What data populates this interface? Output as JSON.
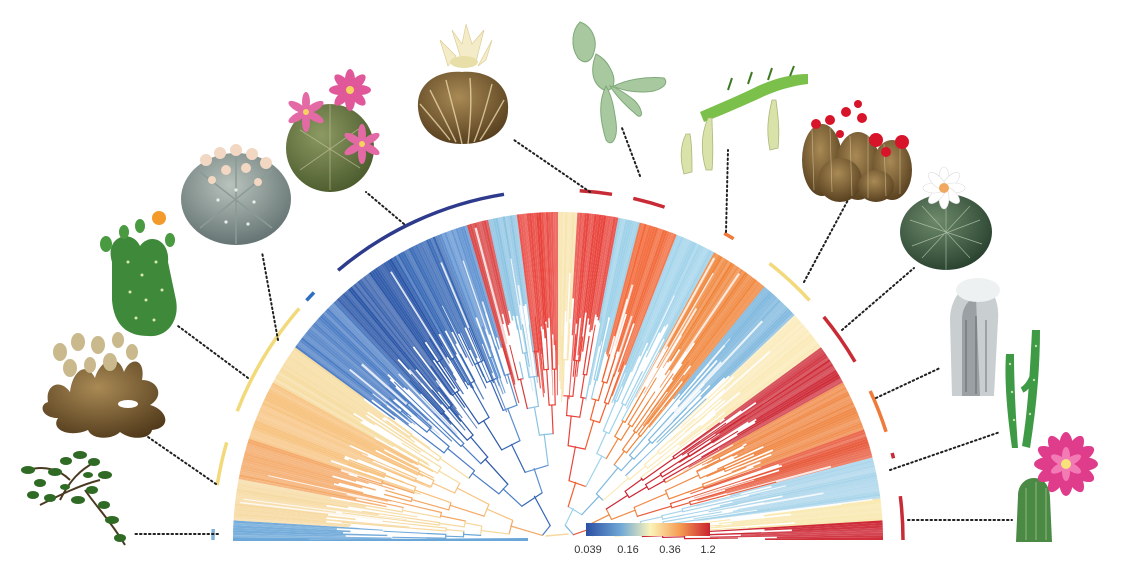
{
  "figure": {
    "description_type": "phylogeny-rate-fan",
    "colors": {
      "low": "#2b57a8",
      "low_mid": "#8fc4e0",
      "mid": "#fbf0b0",
      "high_mid": "#f39a4d",
      "high": "#cc2532",
      "arc_dark_blue": "#2e3b8c",
      "arc_red": "#c82b35",
      "arc_orange": "#ef7a3a",
      "arc_yellow": "#f2d97a",
      "arc_light_blue": "#7fb3d8"
    }
  },
  "color_scale": {
    "ticks": [
      "0.039",
      "0.16",
      "0.36",
      "1.2"
    ],
    "stops": [
      "#2b4fa3",
      "#6fa8d6",
      "#fbf3b8",
      "#f59b52",
      "#c9222f"
    ]
  },
  "clades": [
    {
      "id": "c1",
      "color": "#7fb3d8",
      "span": [
        0.0,
        0.01
      ]
    },
    {
      "id": "c2",
      "color": "#f2d97a",
      "span": [
        0.05,
        0.09
      ]
    },
    {
      "id": "c3",
      "color": "#f2d97a",
      "span": [
        0.12,
        0.23
      ]
    },
    {
      "id": "c4",
      "color": "#2e6fbf",
      "span": [
        0.24,
        0.25
      ]
    },
    {
      "id": "c5",
      "color": "#2e3b8c",
      "span": [
        0.28,
        0.45
      ]
    },
    {
      "id": "c6",
      "color": "#c82b35",
      "span": [
        0.52,
        0.55
      ]
    },
    {
      "id": "c7",
      "color": "#c82b35",
      "span": [
        0.57,
        0.6
      ]
    },
    {
      "id": "c8",
      "color": "#ef7a3a",
      "span": [
        0.66,
        0.67
      ]
    },
    {
      "id": "c9",
      "color": "#f2d97a",
      "span": [
        0.71,
        0.76
      ]
    },
    {
      "id": "c10",
      "color": "#c82b35",
      "span": [
        0.78,
        0.83
      ]
    },
    {
      "id": "c11",
      "color": "#ef7a3a",
      "span": [
        0.86,
        0.9
      ]
    },
    {
      "id": "c12",
      "color": "#c82b35",
      "span": [
        0.92,
        0.925
      ]
    },
    {
      "id": "c13",
      "color": "#c82b35",
      "span": [
        0.96,
        1.0
      ]
    }
  ],
  "plants": [
    {
      "id": "leafy-shrub",
      "label": "leafy shrub (Pereskia)"
    },
    {
      "id": "coral-cactus",
      "label": "branching cylindropuntia"
    },
    {
      "id": "prickly-pear",
      "label": "prickly pear (Opuntia)"
    },
    {
      "id": "star-cactus",
      "label": "star cactus (Astrophytum)"
    },
    {
      "id": "pink-globe",
      "label": "pink-flowered globe cactus"
    },
    {
      "id": "ribbed-globe",
      "label": "ribbed globe with cream flower"
    },
    {
      "id": "leaf-cactus",
      "label": "leaf cactus (Epiphyllum)"
    },
    {
      "id": "climbing-cactus",
      "label": "climbing cactus with buds"
    },
    {
      "id": "red-flower-cluster",
      "label": "clustered cactus with red flowers"
    },
    {
      "id": "white-flower-globe",
      "label": "globe cactus with white flower"
    },
    {
      "id": "woolly-column",
      "label": "woolly columnar cactus"
    },
    {
      "id": "slender-columns",
      "label": "slender columnar cactus"
    },
    {
      "id": "magenta-flower",
      "label": "columnar cactus with magenta flower"
    }
  ]
}
